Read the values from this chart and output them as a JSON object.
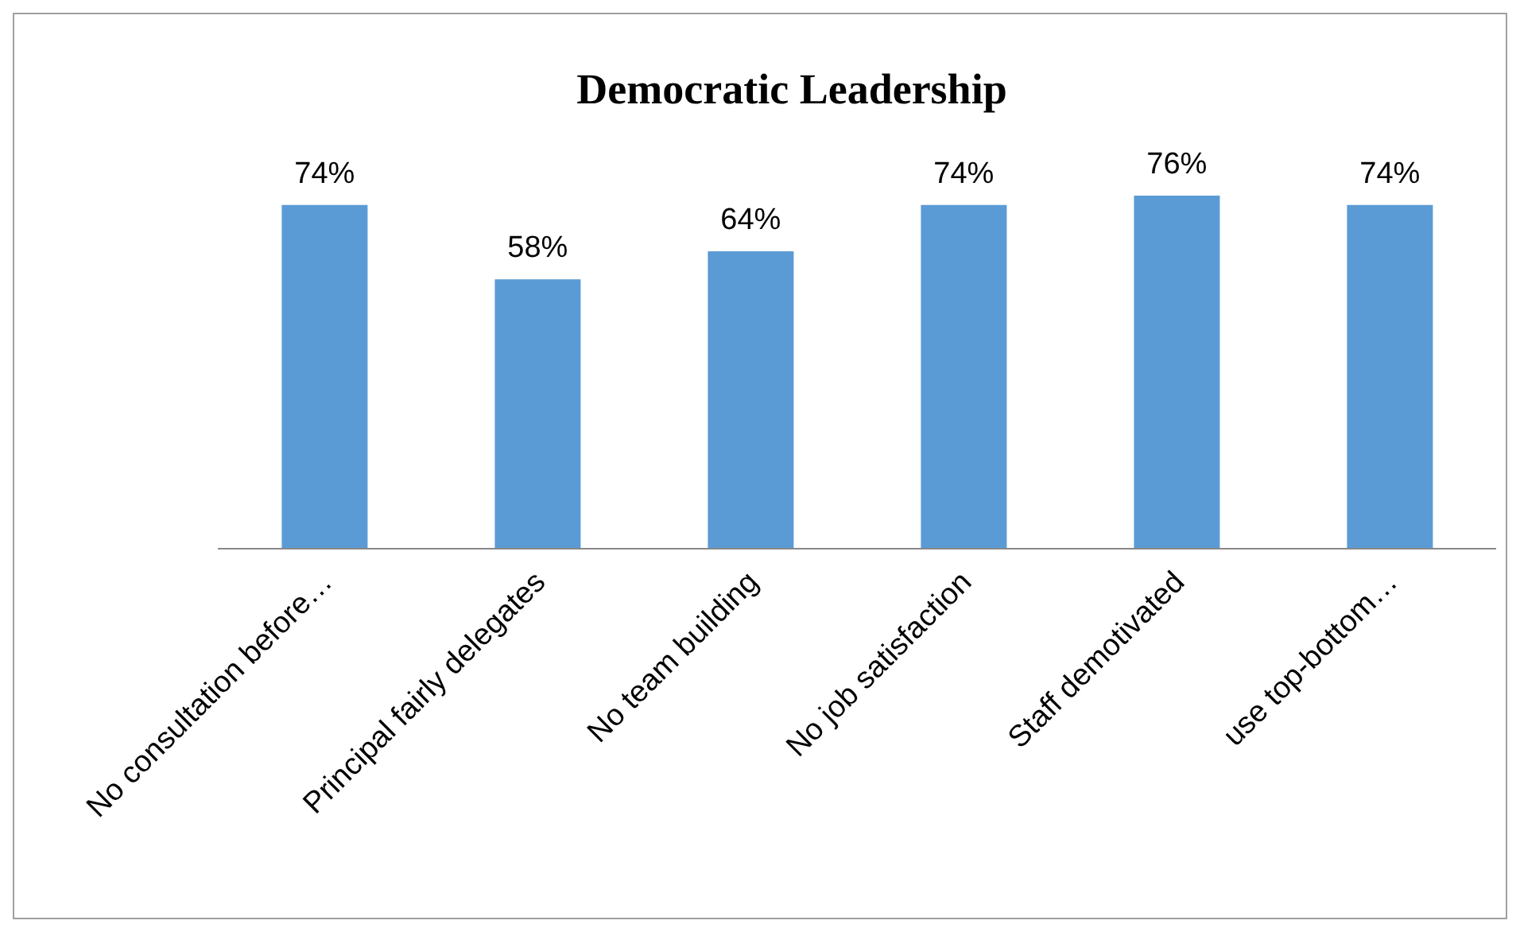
{
  "chart_data": {
    "type": "bar",
    "title": "Democratic Leadership",
    "categories": [
      "No consultation before…",
      "Principal fairly delegates",
      "No team building",
      "No job satisfaction",
      "Staff demotivated",
      "use top-bottom…"
    ],
    "values": [
      74,
      58,
      64,
      74,
      76,
      74
    ],
    "value_labels": [
      "74%",
      "58%",
      "64%",
      "74%",
      "76%",
      "74%"
    ],
    "color": "#5b9bd5",
    "grid": false
  }
}
